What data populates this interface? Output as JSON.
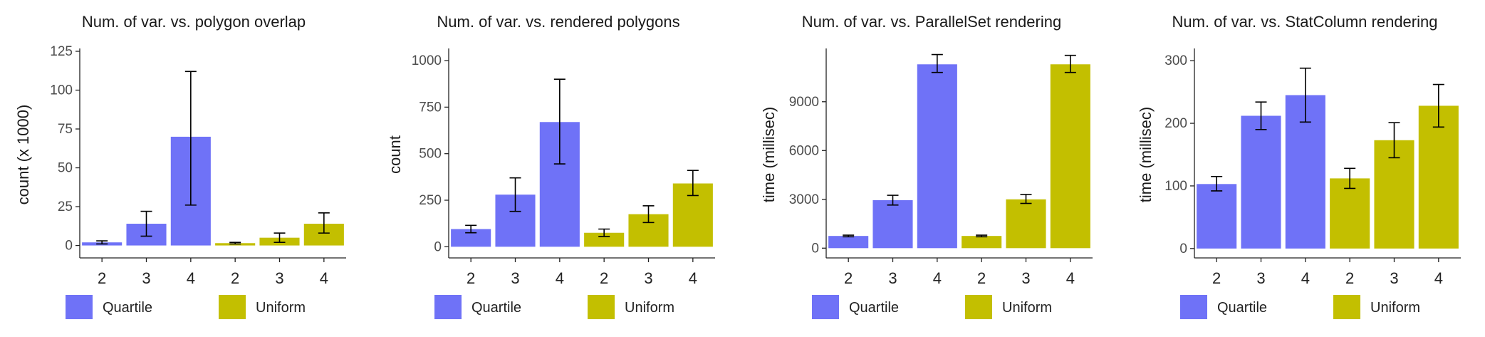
{
  "legend": {
    "entries": [
      "Quartile",
      "Uniform"
    ]
  },
  "colors": {
    "Quartile": "#6F72F7",
    "Uniform": "#C3BF00"
  },
  "chart_data": [
    {
      "type": "bar",
      "title": "Num. of var. vs. polygon overlap",
      "xlabel": "",
      "ylabel": "count (x 1000)",
      "ylim": [
        -8,
        125
      ],
      "yticks": [
        0,
        25,
        50,
        75,
        100,
        125
      ],
      "ytick_labels": [
        "0",
        "25",
        "50",
        "75",
        "100",
        "125"
      ],
      "categories": [
        "2",
        "3",
        "4",
        "2",
        "3",
        "4"
      ],
      "groups": [
        "Quartile",
        "Quartile",
        "Quartile",
        "Uniform",
        "Uniform",
        "Uniform"
      ],
      "values": [
        2,
        14,
        70,
        1.5,
        5,
        14
      ],
      "err_low": [
        1,
        6,
        26,
        1.0,
        2,
        8
      ],
      "err_high": [
        3,
        22,
        112,
        2.0,
        8,
        21
      ],
      "legend": "bottom"
    },
    {
      "type": "bar",
      "title": "Num. of var. vs. rendered polygons",
      "xlabel": "",
      "ylabel": "count",
      "ylim": [
        -60,
        1050
      ],
      "yticks": [
        0,
        250,
        500,
        750,
        1000
      ],
      "ytick_labels": [
        "0",
        "250",
        "500",
        "750",
        "1000"
      ],
      "categories": [
        "2",
        "3",
        "4",
        "2",
        "3",
        "4"
      ],
      "groups": [
        "Quartile",
        "Quartile",
        "Quartile",
        "Uniform",
        "Uniform",
        "Uniform"
      ],
      "values": [
        95,
        280,
        670,
        75,
        175,
        340
      ],
      "err_low": [
        75,
        190,
        445,
        55,
        130,
        275
      ],
      "err_high": [
        115,
        370,
        900,
        95,
        220,
        410
      ],
      "legend": "bottom"
    },
    {
      "type": "bar",
      "title": "Num. of var. vs. ParallelSet rendering",
      "xlabel": "",
      "ylabel": "time (millisec)",
      "ylim": [
        -600,
        12100
      ],
      "yticks": [
        0,
        3000,
        6000,
        9000
      ],
      "ytick_labels": [
        "0",
        "3000",
        "6000",
        "9000"
      ],
      "categories": [
        "2",
        "3",
        "4",
        "2",
        "3",
        "4"
      ],
      "groups": [
        "Quartile",
        "Quartile",
        "Quartile",
        "Uniform",
        "Uniform",
        "Uniform"
      ],
      "values": [
        750,
        2950,
        11300,
        750,
        3000,
        11300
      ],
      "err_low": [
        700,
        2650,
        10800,
        700,
        2750,
        10800
      ],
      "err_high": [
        800,
        3250,
        11900,
        800,
        3300,
        11850
      ],
      "legend": "bottom"
    },
    {
      "type": "bar",
      "title": "Num. of var. vs. StatColumn rendering",
      "xlabel": "",
      "ylabel": "time (millisec)",
      "ylim": [
        -15,
        315
      ],
      "yticks": [
        0,
        100,
        200,
        300
      ],
      "ytick_labels": [
        "0",
        "100",
        "200",
        "300"
      ],
      "categories": [
        "2",
        "3",
        "4",
        "2",
        "3",
        "4"
      ],
      "groups": [
        "Quartile",
        "Quartile",
        "Quartile",
        "Uniform",
        "Uniform",
        "Uniform"
      ],
      "values": [
        103,
        212,
        245,
        112,
        173,
        228
      ],
      "err_low": [
        92,
        190,
        202,
        96,
        145,
        194
      ],
      "err_high": [
        115,
        234,
        288,
        128,
        201,
        262
      ],
      "legend": "bottom"
    }
  ]
}
